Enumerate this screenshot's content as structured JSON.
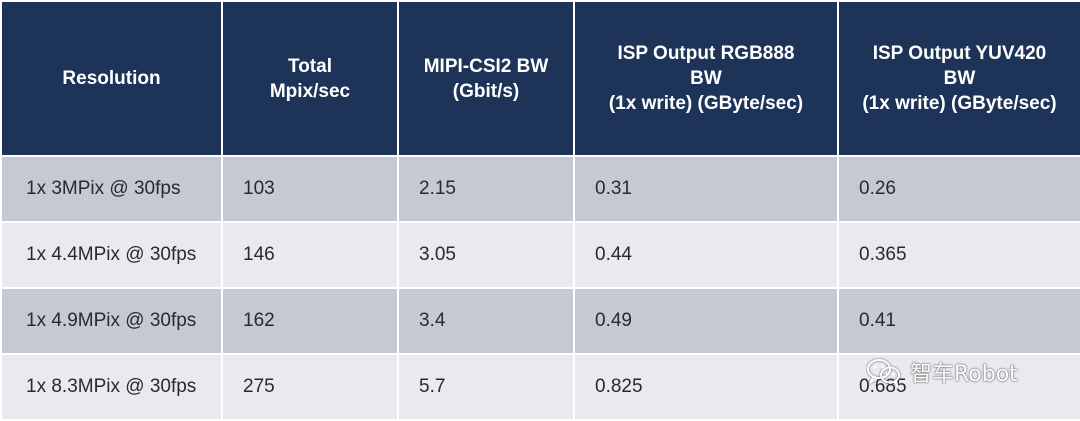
{
  "table": {
    "headers": [
      "Resolution",
      "Total\nMpix/sec",
      "MIPI-CSI2 BW\n(Gbit/s)",
      "ISP Output RGB888\nBW\n(1x write) (GByte/sec)",
      "ISP Output YUV420\nBW\n(1x write) (GByte/sec)"
    ],
    "rows": [
      [
        "1x 3MPix @ 30fps",
        "103",
        "2.15",
        "0.31",
        "0.26"
      ],
      [
        "1x 4.4MPix @ 30fps",
        "146",
        "3.05",
        "0.44",
        "0.365"
      ],
      [
        "1x 4.9MPix @ 30fps",
        "162",
        "3.4",
        "0.49",
        "0.41"
      ],
      [
        "1x 8.3MPix @ 30fps",
        "275",
        "5.7",
        "0.825",
        "0.685"
      ]
    ]
  },
  "watermark": {
    "text": "智车Robot",
    "icon": "wechat-icon"
  },
  "colors": {
    "header_bg": "#1d3458",
    "row_dark": "#c4c9d3",
    "row_light": "#e8eaef"
  }
}
